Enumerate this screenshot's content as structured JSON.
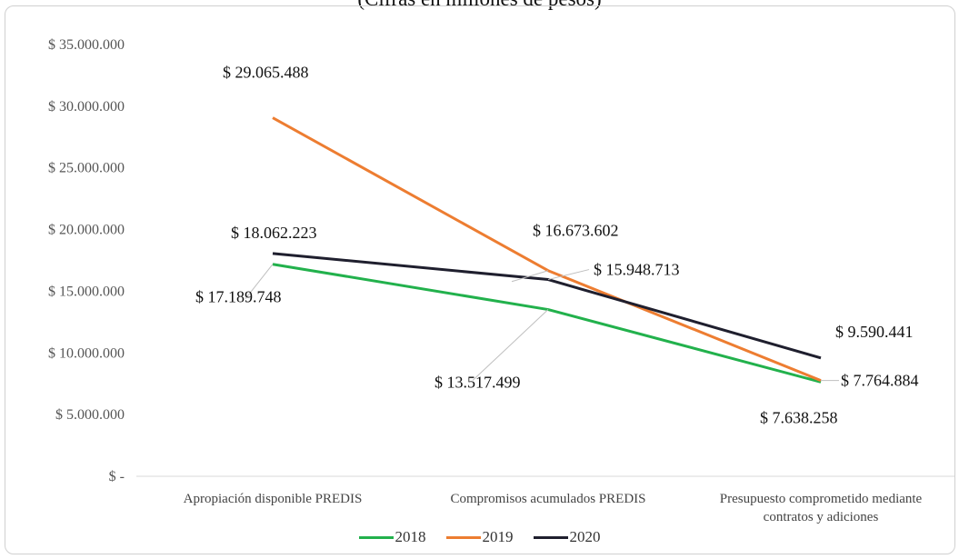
{
  "chart_data": {
    "type": "line",
    "subtitle": "(Cifras en millones de pesos)",
    "categories": [
      "Apropiación disponible PREDIS",
      "Compromisos acumulados  PREDIS",
      "Presupuesto comprometido mediante contratos y adiciones"
    ],
    "category_lines": [
      [
        "Apropiación disponible PREDIS"
      ],
      [
        "Compromisos acumulados  PREDIS"
      ],
      [
        "Presupuesto comprometido mediante",
        "contratos y adiciones"
      ]
    ],
    "y_ticks": [
      "$ 35.000.000",
      "$ 30.000.000",
      "$ 25.000.000",
      "$ 20.000.000",
      "$ 15.000.000",
      "$ 10.000.000",
      "$ 5.000.000",
      "$ -"
    ],
    "ylim": [
      0,
      35000000
    ],
    "legend_position": "bottom",
    "grid": false,
    "series": [
      {
        "name": "2018",
        "color": "#22b14c",
        "values": [
          17189748,
          13517499,
          7638258
        ],
        "labels": [
          "$ 17.189.748",
          "$ 13.517.499",
          "$ 7.638.258"
        ]
      },
      {
        "name": "2019",
        "color": "#ed7d31",
        "values": [
          29065488,
          16673602,
          7764884
        ],
        "labels": [
          "$ 29.065.488",
          "$ 16.673.602",
          "$ 7.764.884"
        ]
      },
      {
        "name": "2020",
        "color": "#1f1f2e",
        "values": [
          18062223,
          15948713,
          9590441
        ],
        "labels": [
          "$ 18.062.223",
          "$ 15.948.713",
          "$ 9.590.441"
        ]
      }
    ]
  }
}
